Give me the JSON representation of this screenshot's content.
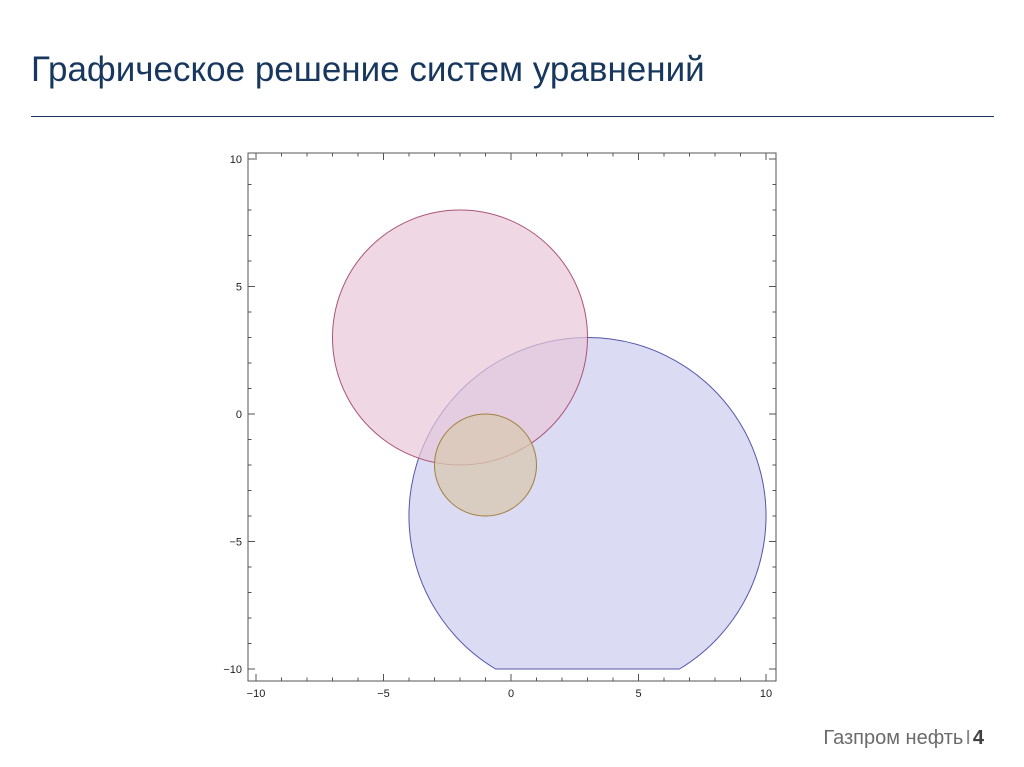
{
  "slide": {
    "title": "Графическое решение систем уравнений",
    "footer_company": "Газпром нефть",
    "footer_separator": "I",
    "page_number": "4",
    "title_color": "#17375e"
  },
  "chart_data": {
    "type": "region_plot",
    "xlim": [
      -10,
      10
    ],
    "ylim": [
      -10,
      10
    ],
    "x_ticks": [
      -10,
      -5,
      0,
      5,
      10
    ],
    "y_ticks": [
      -10,
      -5,
      0,
      5,
      10
    ],
    "x_tick_labels": [
      "−10",
      "−5",
      "0",
      "5",
      "10"
    ],
    "y_tick_labels": [
      "−10",
      "−5",
      "0",
      "5",
      "10"
    ],
    "grid": false,
    "shapes": [
      {
        "center": [
          3,
          -4
        ],
        "radius": 7,
        "fill": "#ccccee",
        "stroke": "#5555aa",
        "clip_ymin": -10
      },
      {
        "center": [
          -2,
          3
        ],
        "radius": 5,
        "fill": "#e8c8d8",
        "stroke": "#aa5577"
      },
      {
        "center": [
          -1,
          -2
        ],
        "radius": 2,
        "fill": "#d8c8b0",
        "stroke": "#a08040"
      }
    ]
  }
}
